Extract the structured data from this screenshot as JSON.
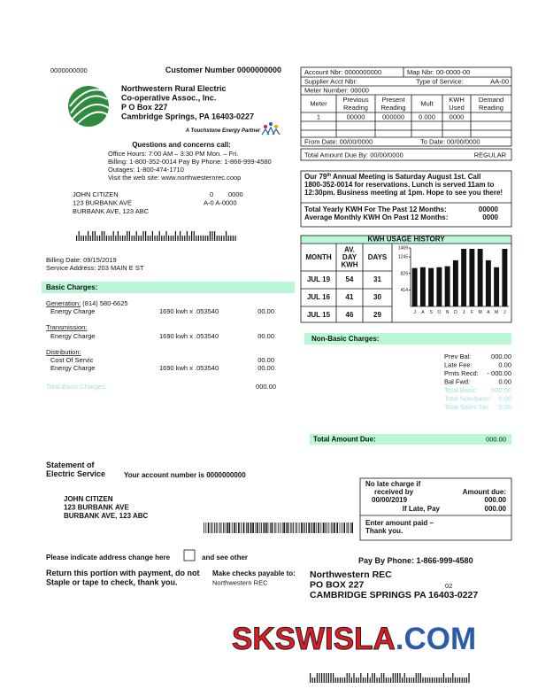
{
  "header": {
    "account_top": "0000000000",
    "customer_number": "Customer Number 0000000000"
  },
  "company": {
    "lines": [
      "Northwestern Rural Electric",
      "Co-operative Assoc., Inc.",
      "P O Box 227",
      "Cambridge Springs, PA 16403-0227"
    ],
    "partner": "A Touchstone Energy Partner"
  },
  "contact": {
    "heading": "Questions and concerns call:",
    "lines": [
      "Office Hours: 7:00 AM – 3:30 PM Mon. – Fri.",
      "Billing: 1-800-352-0014 Pay By Phone: 1-866-999-4580",
      "Outages: 1-800-474-1710",
      "Visit the web site: www.northwesternrec.coop"
    ]
  },
  "customer": {
    "lines": [
      "JOHN CITIZEN",
      "123 BURBANK AVE",
      "BURBANK AVE, 123 ABC"
    ],
    "code1a": "0",
    "code1b": "0000",
    "code2": "A-0 A-0000"
  },
  "billing": {
    "date": "Billing Date: 09/15/2019",
    "service_address": "Service Address: 203 MAIN E ST"
  },
  "basic_charges": {
    "heading": "Basic Charges:",
    "sections": [
      {
        "title": "Generation:",
        "extra": " (814) 580-6625",
        "items": [
          {
            "label": "Energy Charge",
            "detail": "1690 kwh x .053540",
            "amount": "00.00"
          }
        ]
      },
      {
        "title": "Transmission:",
        "items": [
          {
            "label": "Energy Charge",
            "detail": "1690 kwh x .053540",
            "amount": "00.00"
          }
        ]
      },
      {
        "title": "Distribution:",
        "items": [
          {
            "label": "Cost Of Servic",
            "amount": "00.00"
          },
          {
            "label": "Energy Charge",
            "detail": "1690 kwh x .053540",
            "amount": "00.00"
          }
        ]
      }
    ],
    "total_label": "Total Basic Charges:",
    "total": "000.00"
  },
  "account": {
    "account_nbr": "Account Nbr: 0000000000",
    "map_nbr": "Map Nbr: 00-0000-00",
    "supplier": "Supplier Acct Nbr:",
    "type_label": "Type of Service:",
    "type": "AA-00",
    "meter_number": "Meter Number: 00000",
    "columns": [
      [
        "Meter"
      ],
      [
        "Previous",
        "Reading"
      ],
      [
        "Present",
        "Reading"
      ],
      [
        "Mult"
      ],
      [
        "KWH",
        "Used"
      ],
      [
        "Demand",
        "Reading"
      ]
    ],
    "row": [
      "1",
      "00000",
      "000000",
      "0.000",
      "0000"
    ],
    "from": "From Date: 00/00/0000",
    "to": "To Date: 00/00/0000",
    "due_by": "Total Amount Due By:  00/00/0000",
    "due_type": "REGULAR"
  },
  "notice": {
    "lead": "Our 79",
    "sup": "th",
    "rest": " Annual Meeting is Saturday August 1st. Call",
    "lines": [
      "1800-352-0014 for reservations. Lunch is served 11am to",
      "12:30pm. Business meeting at 1pm. Hope to see you there!"
    ]
  },
  "kwh_totals": [
    {
      "label": "Total Yearly KWH For The Past 12 Months:",
      "value": "00000"
    },
    {
      "label": "Average Monthly KWH On Past 12 Months:",
      "value": "0000"
    }
  ],
  "usage_history": {
    "title": "KWH USAGE HISTORY",
    "columns": [
      [
        "MONTH"
      ],
      [
        "AV.",
        "DAY",
        "KWH"
      ],
      [
        "DAYS"
      ]
    ],
    "rows": [
      [
        "JUL 19",
        54,
        31
      ],
      [
        "JUL 16",
        41,
        30
      ],
      [
        "JUL 15",
        46,
        29
      ]
    ],
    "chart": {
      "type": "bar",
      "categories": [
        "J",
        "A",
        "S",
        "O",
        "N",
        "D",
        "J",
        "F",
        "M",
        "A",
        "M",
        "J"
      ],
      "values": [
        965,
        985,
        965,
        985,
        1010,
        1160,
        1447,
        1447,
        1447,
        1160,
        985,
        1447
      ],
      "color": "#111111",
      "ylim": [
        0,
        1469
      ],
      "yticks": [
        414,
        829,
        1245,
        1469
      ]
    }
  },
  "non_basic": {
    "heading": "Non-Basic Charges:",
    "items": [
      {
        "label": "Prev Bal:",
        "value": "000.00"
      },
      {
        "label": "Late Fee:",
        "value": "0.00"
      },
      {
        "label": "Pmts Recd:",
        "value": "- 000.00"
      },
      {
        "label": "Bal Fwd:",
        "value": "0.00"
      }
    ],
    "faded": [
      {
        "label": "Total Basic",
        "value": "000.00"
      },
      {
        "label": "Total Non-basic",
        "value": "0.00"
      },
      {
        "label": "Total Sales Tax",
        "value": "0.00"
      }
    ]
  },
  "total_due": {
    "label": "Total Amount Due:",
    "value": "000.00"
  },
  "stub": {
    "statement": [
      "Statement of",
      "Electric Service"
    ],
    "account_line": "Your account number is 0000000000",
    "address": [
      "JOHN CITIZEN",
      "123 BURBANK AVE",
      "BURBANK AVE, 123 ABC"
    ],
    "late_box": {
      "line1": "No late charge if",
      "line2": "received by",
      "date": "00/00/2019",
      "amount_label": "Amount due:",
      "amount": "000.00",
      "late_label": "If Late, Pay",
      "late_amount": "000.00",
      "enter": [
        "Enter amount paid –",
        "Thank you."
      ]
    },
    "address_change": [
      "Please indicate address change here",
      "and see other"
    ],
    "pay_phone": "Pay By Phone: 1-866-999-4580",
    "return": [
      "Return this portion with payment, do not",
      "Staple or tape to check, thank you."
    ],
    "payable": [
      "Make checks payable to:",
      "Northwestern REC"
    ],
    "remit": [
      "Northwestern REC",
      "PO BOX 227",
      "CAMBRIDGE SPRINGS PA 16403-0227"
    ],
    "remit_code": "02"
  },
  "watermark": {
    "main": "SKSWISLA",
    "suffix": ".COM"
  }
}
